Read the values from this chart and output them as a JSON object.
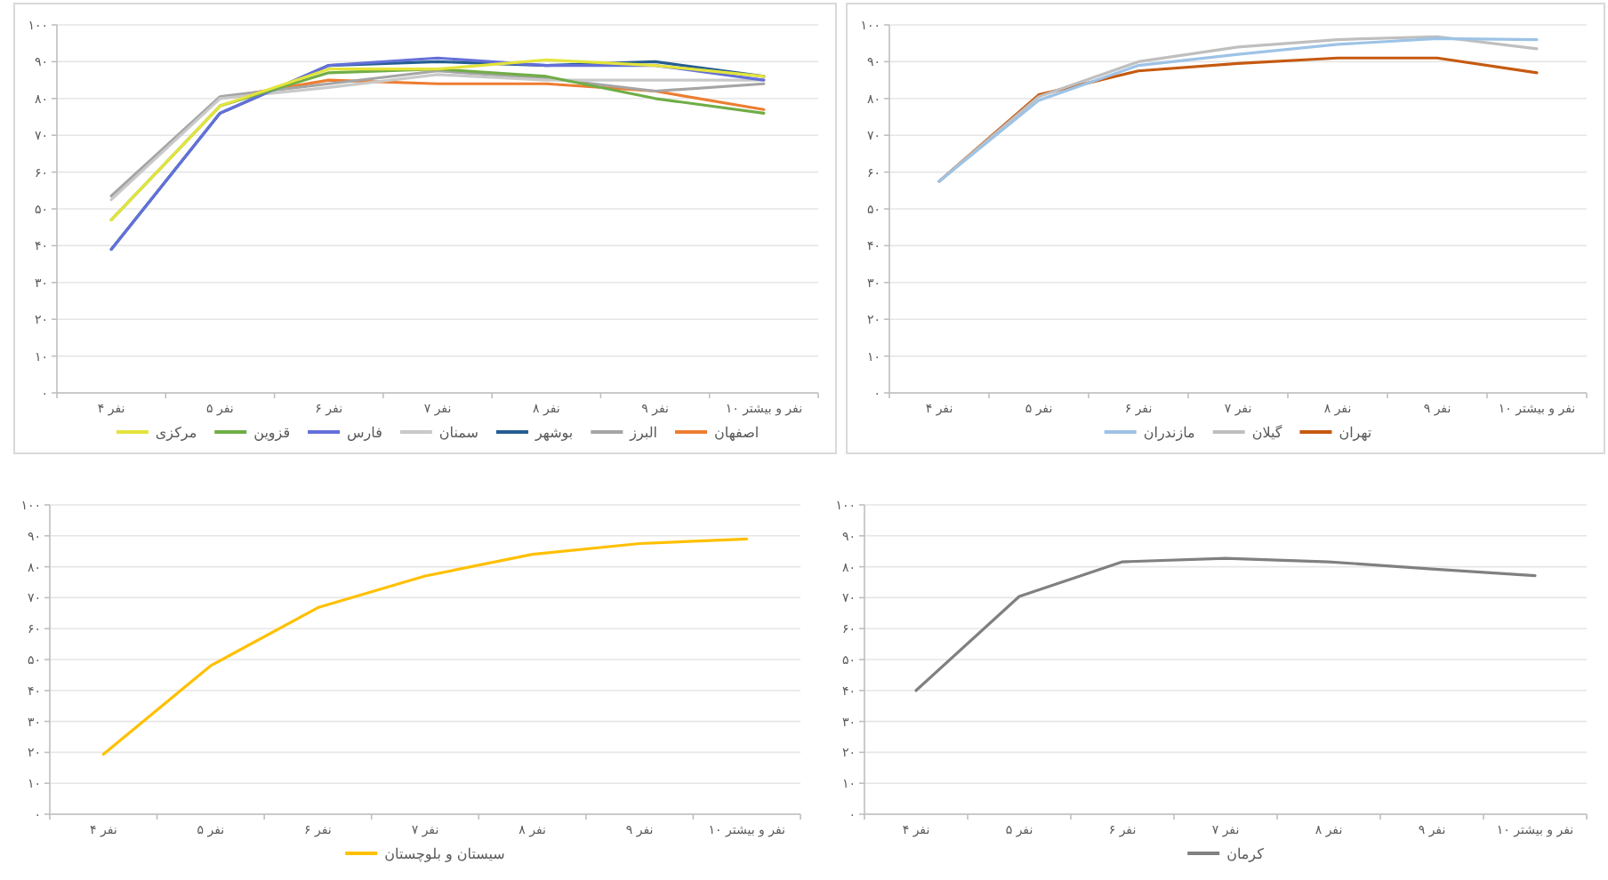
{
  "chart_data": [
    {
      "type": "line",
      "categories": [
        "۴ نفر",
        "۵ نفر",
        "۶ نفر",
        "۷ نفر",
        "۸ نفر",
        "۹ نفر",
        "۱۰ نفر و بیشتر"
      ],
      "ylim": [
        0,
        100
      ],
      "yticks": [
        {
          "value": 0,
          "label": "۰"
        },
        {
          "value": 10,
          "label": "۱۰"
        },
        {
          "value": 20,
          "label": "۲۰"
        },
        {
          "value": 30,
          "label": "۳۰"
        },
        {
          "value": 40,
          "label": "۴۰"
        },
        {
          "value": 50,
          "label": "۵۰"
        },
        {
          "value": 60,
          "label": "۶۰"
        },
        {
          "value": 70,
          "label": "۷۰"
        },
        {
          "value": 80,
          "label": "۸۰"
        },
        {
          "value": 90,
          "label": "۹۰"
        },
        {
          "value": 100,
          "label": "۱۰۰"
        }
      ],
      "grid": "y",
      "legend": "bottom",
      "series": [
        {
          "name": "اصفهان",
          "color": "#ed7d31",
          "values": [
            null,
            80,
            85,
            84,
            84,
            82,
            77
          ]
        },
        {
          "name": "البرز",
          "color": "#a5a5a5",
          "values": [
            53.5,
            80.5,
            84,
            87.5,
            85.5,
            82,
            84
          ]
        },
        {
          "name": "بوشهر",
          "color": "#255e91",
          "values": [
            39,
            76,
            89,
            90,
            89,
            90,
            86
          ]
        },
        {
          "name": "سمنان",
          "color": "#c9c9c9",
          "values": [
            52.5,
            80,
            83,
            86.5,
            85,
            85,
            85
          ]
        },
        {
          "name": "فارس",
          "color": "#6470d8",
          "values": [
            39,
            76,
            89,
            91,
            89,
            89,
            85
          ]
        },
        {
          "name": "قزوین",
          "color": "#70ad47",
          "values": [
            47,
            78,
            87,
            88,
            86,
            80,
            76
          ]
        },
        {
          "name": "مرکزی",
          "color": "#e4e43c",
          "values": [
            47,
            78,
            88,
            88,
            90.5,
            89,
            86
          ]
        }
      ]
    },
    {
      "type": "line",
      "categories": [
        "۴ نفر",
        "۵ نفر",
        "۶ نفر",
        "۷ نفر",
        "۸ نفر",
        "۹ نفر",
        "۱۰ نفر و بیشتر"
      ],
      "ylim": [
        0,
        100
      ],
      "yticks": [
        {
          "value": 0,
          "label": "۰"
        },
        {
          "value": 10,
          "label": "۱۰"
        },
        {
          "value": 20,
          "label": "۲۰"
        },
        {
          "value": 30,
          "label": "۳۰"
        },
        {
          "value": 40,
          "label": "۴۰"
        },
        {
          "value": 50,
          "label": "۵۰"
        },
        {
          "value": 60,
          "label": "۶۰"
        },
        {
          "value": 70,
          "label": "۷۰"
        },
        {
          "value": 80,
          "label": "۸۰"
        },
        {
          "value": 90,
          "label": "۹۰"
        },
        {
          "value": 100,
          "label": "۱۰۰"
        }
      ],
      "grid": "y",
      "legend": "bottom",
      "series": [
        {
          "name": "تهران",
          "color": "#c55a11",
          "values": [
            57.5,
            81,
            87.5,
            89.5,
            91,
            91,
            87
          ]
        },
        {
          "name": "گیلان",
          "color": "#bfbfbf",
          "values": [
            57.5,
            80.5,
            90,
            94,
            96,
            96.8,
            93.5
          ]
        },
        {
          "name": "مازندران",
          "color": "#9dc3e6",
          "values": [
            57.5,
            79.5,
            89,
            92,
            94.7,
            96.3,
            96
          ]
        }
      ]
    },
    {
      "type": "line",
      "categories": [
        "۴ نفر",
        "۵ نفر",
        "۶ نفر",
        "۷ نفر",
        "۸ نفر",
        "۹ نفر",
        "۱۰ نفر و بیشتر"
      ],
      "ylim": [
        0,
        100
      ],
      "yticks": [
        {
          "value": 0,
          "label": "۰"
        },
        {
          "value": 10,
          "label": "۱۰"
        },
        {
          "value": 20,
          "label": "۲۰"
        },
        {
          "value": 30,
          "label": "۳۰"
        },
        {
          "value": 40,
          "label": "۴۰"
        },
        {
          "value": 50,
          "label": "۵۰"
        },
        {
          "value": 60,
          "label": "۶۰"
        },
        {
          "value": 70,
          "label": "۷۰"
        },
        {
          "value": 80,
          "label": "۸۰"
        },
        {
          "value": 90,
          "label": "۹۰"
        },
        {
          "value": 100,
          "label": "۱۰۰"
        }
      ],
      "grid": "y",
      "legend": "bottom",
      "series": [
        {
          "name": "سیستان و بلوچستان",
          "color": "#ffc000",
          "values": [
            19.4,
            48,
            66.8,
            77,
            84,
            87.5,
            89
          ]
        }
      ]
    },
    {
      "type": "line",
      "categories": [
        "۴ نفر",
        "۵ نفر",
        "۶ نفر",
        "۷ نفر",
        "۸ نفر",
        "۹ نفر",
        "۱۰ نفر و بیشتر"
      ],
      "ylim": [
        0,
        100
      ],
      "yticks": [
        {
          "value": 0,
          "label": "۰"
        },
        {
          "value": 10,
          "label": "۱۰"
        },
        {
          "value": 20,
          "label": "۲۰"
        },
        {
          "value": 30,
          "label": "۳۰"
        },
        {
          "value": 40,
          "label": "۴۰"
        },
        {
          "value": 50,
          "label": "۵۰"
        },
        {
          "value": 60,
          "label": "۶۰"
        },
        {
          "value": 70,
          "label": "۷۰"
        },
        {
          "value": 80,
          "label": "۸۰"
        },
        {
          "value": 90,
          "label": "۹۰"
        },
        {
          "value": 100,
          "label": "۱۰۰"
        }
      ],
      "grid": "y",
      "legend": "bottom",
      "series": [
        {
          "name": "کرمان",
          "color": "#808080",
          "values": [
            40,
            70.4,
            81.6,
            82.7,
            81.6,
            79.3,
            77.1
          ]
        }
      ]
    }
  ]
}
